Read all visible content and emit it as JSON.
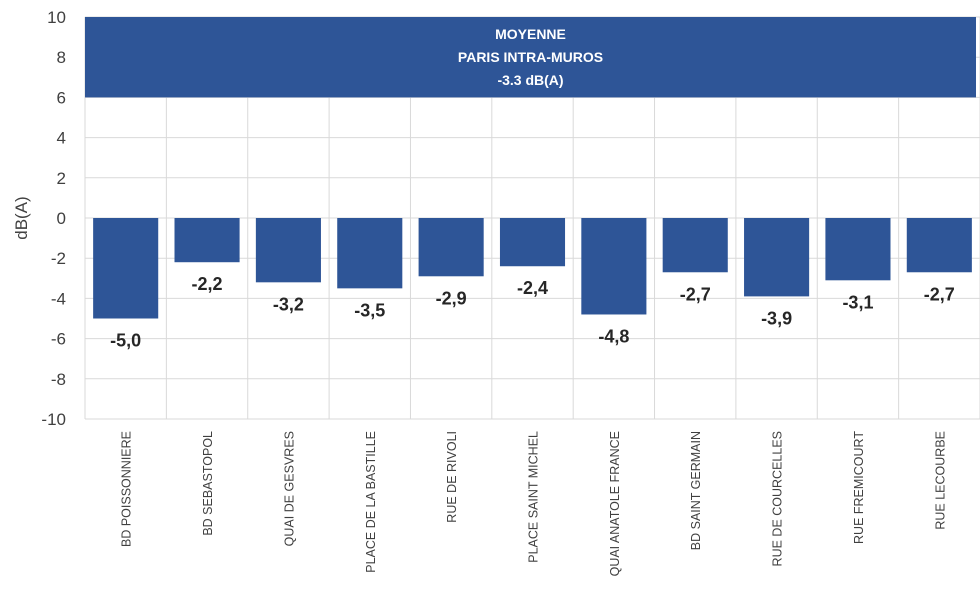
{
  "chart_data": {
    "type": "bar",
    "ylabel": "dB(A)",
    "ylim": [
      -10,
      10
    ],
    "yticks": [
      10,
      8,
      6,
      4,
      2,
      0,
      -2,
      -4,
      -6,
      -8,
      -10
    ],
    "categories": [
      "BD POISSONNIERE",
      "BD SEBASTOPOL",
      "QUAI DE GESVRES",
      "PLACE DE LA BASTILLE",
      "RUE DE RIVOLI",
      "PLACE SAINT MICHEL",
      "QUAI ANATOLE FRANCE",
      "BD SAINT GERMAIN",
      "RUE DE COURCELLES",
      "RUE FREMICOURT",
      "RUE LECOURBE"
    ],
    "values": [
      -5.0,
      -2.2,
      -3.2,
      -3.5,
      -2.9,
      -2.4,
      -4.8,
      -2.7,
      -3.9,
      -3.1,
      -2.7
    ],
    "data_labels": [
      "-5,0",
      "-2,2",
      "-3,2",
      "-3,5",
      "-2,9",
      "-2,4",
      "-4,8",
      "-2,7",
      "-3,9",
      "-3,1",
      "-2,7"
    ],
    "banner": {
      "range": [
        6,
        10
      ],
      "lines": [
        "MOYENNE",
        "PARIS INTRA-MUROS",
        "-3.3 dB(A)"
      ]
    },
    "grid": true,
    "colors": {
      "bar": "#2e5597",
      "banner": "#2e5597",
      "grid": "#d9d9d9"
    }
  }
}
